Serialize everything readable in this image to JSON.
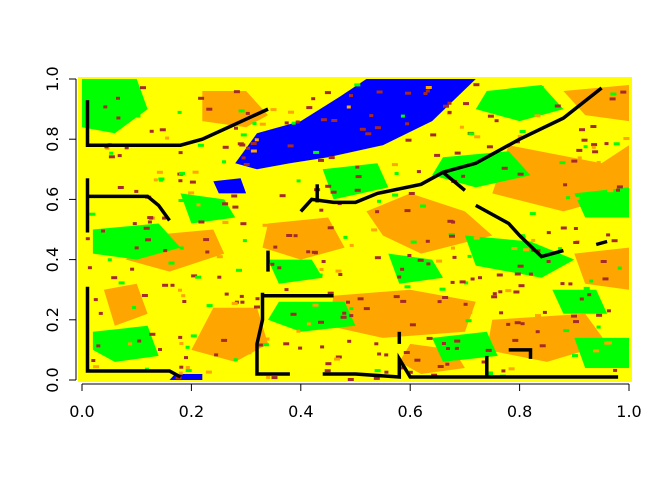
{
  "chart_data": {
    "type": "heatmap",
    "title": "",
    "xlabel": "",
    "ylabel": "",
    "xlim": [
      0,
      1
    ],
    "ylim": [
      0,
      1
    ],
    "grid": false,
    "x_ticks": [
      "0.0",
      "0.2",
      "0.4",
      "0.6",
      "0.8",
      "1.0"
    ],
    "y_ticks": [
      "0.0",
      "0.2",
      "0.4",
      "0.6",
      "0.8",
      "1.0"
    ],
    "categories": [
      "blue",
      "green",
      "yellow",
      "orange",
      "brown"
    ],
    "colors": {
      "water": "#0000ff",
      "green": "#00ff00",
      "yellow": "#ffff00",
      "orange": "#ffa500",
      "brown": "#a52a2a",
      "line": "#000000"
    },
    "regions": [
      {
        "class": "water",
        "points": [
          [
            0.52,
            1.0
          ],
          [
            0.72,
            1.0
          ],
          [
            0.64,
            0.86
          ],
          [
            0.55,
            0.78
          ],
          [
            0.45,
            0.74
          ],
          [
            0.38,
            0.72
          ],
          [
            0.32,
            0.7
          ],
          [
            0.28,
            0.72
          ],
          [
            0.32,
            0.82
          ],
          [
            0.4,
            0.86
          ],
          [
            0.47,
            0.94
          ]
        ]
      },
      {
        "class": "water",
        "points": [
          [
            0.24,
            0.66
          ],
          [
            0.29,
            0.67
          ],
          [
            0.3,
            0.62
          ],
          [
            0.25,
            0.62
          ]
        ]
      },
      {
        "class": "water",
        "points": [
          [
            0.16,
            0.0
          ],
          [
            0.22,
            0.0
          ],
          [
            0.22,
            0.02
          ],
          [
            0.17,
            0.02
          ]
        ]
      },
      {
        "class": "orange",
        "points": [
          [
            0.22,
            0.96
          ],
          [
            0.3,
            0.96
          ],
          [
            0.34,
            0.88
          ],
          [
            0.3,
            0.84
          ],
          [
            0.22,
            0.86
          ]
        ]
      },
      {
        "class": "orange",
        "points": [
          [
            0.52,
            0.93
          ],
          [
            0.6,
            0.94
          ],
          [
            0.62,
            0.88
          ],
          [
            0.55,
            0.86
          ]
        ]
      },
      {
        "class": "orange",
        "points": [
          [
            0.78,
            0.78
          ],
          [
            0.95,
            0.72
          ],
          [
            1.0,
            0.78
          ],
          [
            1.0,
            0.62
          ],
          [
            0.88,
            0.56
          ],
          [
            0.75,
            0.62
          ]
        ]
      },
      {
        "class": "orange",
        "points": [
          [
            0.88,
            0.96
          ],
          [
            1.0,
            0.98
          ],
          [
            1.0,
            0.86
          ],
          [
            0.92,
            0.88
          ]
        ]
      },
      {
        "class": "orange",
        "points": [
          [
            0.6,
            0.62
          ],
          [
            0.7,
            0.56
          ],
          [
            0.75,
            0.48
          ],
          [
            0.62,
            0.42
          ],
          [
            0.55,
            0.48
          ],
          [
            0.52,
            0.56
          ]
        ]
      },
      {
        "class": "orange",
        "points": [
          [
            0.34,
            0.52
          ],
          [
            0.45,
            0.54
          ],
          [
            0.48,
            0.44
          ],
          [
            0.4,
            0.4
          ],
          [
            0.33,
            0.44
          ]
        ]
      },
      {
        "class": "orange",
        "points": [
          [
            0.12,
            0.48
          ],
          [
            0.24,
            0.5
          ],
          [
            0.26,
            0.42
          ],
          [
            0.16,
            0.36
          ],
          [
            0.08,
            0.4
          ]
        ]
      },
      {
        "class": "orange",
        "points": [
          [
            0.46,
            0.28
          ],
          [
            0.6,
            0.3
          ],
          [
            0.72,
            0.26
          ],
          [
            0.7,
            0.16
          ],
          [
            0.55,
            0.14
          ],
          [
            0.45,
            0.18
          ]
        ]
      },
      {
        "class": "orange",
        "points": [
          [
            0.24,
            0.24
          ],
          [
            0.32,
            0.24
          ],
          [
            0.34,
            0.12
          ],
          [
            0.28,
            0.06
          ],
          [
            0.2,
            0.1
          ]
        ]
      },
      {
        "class": "orange",
        "points": [
          [
            0.75,
            0.2
          ],
          [
            0.92,
            0.22
          ],
          [
            0.96,
            0.12
          ],
          [
            0.85,
            0.06
          ],
          [
            0.74,
            0.1
          ]
        ]
      },
      {
        "class": "orange",
        "points": [
          [
            0.04,
            0.3
          ],
          [
            0.1,
            0.32
          ],
          [
            0.12,
            0.22
          ],
          [
            0.06,
            0.18
          ]
        ]
      },
      {
        "class": "orange",
        "points": [
          [
            0.9,
            0.42
          ],
          [
            1.0,
            0.44
          ],
          [
            1.0,
            0.3
          ],
          [
            0.92,
            0.32
          ]
        ]
      },
      {
        "class": "orange",
        "points": [
          [
            0.6,
            0.12
          ],
          [
            0.68,
            0.1
          ],
          [
            0.7,
            0.04
          ],
          [
            0.62,
            0.02
          ],
          [
            0.58,
            0.06
          ]
        ]
      },
      {
        "class": "green",
        "points": [
          [
            0.0,
            1.0
          ],
          [
            0.1,
            1.0
          ],
          [
            0.12,
            0.9
          ],
          [
            0.06,
            0.82
          ],
          [
            0.0,
            0.84
          ]
        ]
      },
      {
        "class": "green",
        "points": [
          [
            0.74,
            0.96
          ],
          [
            0.84,
            0.98
          ],
          [
            0.88,
            0.9
          ],
          [
            0.8,
            0.86
          ],
          [
            0.72,
            0.9
          ]
        ]
      },
      {
        "class": "green",
        "points": [
          [
            0.66,
            0.74
          ],
          [
            0.78,
            0.76
          ],
          [
            0.82,
            0.68
          ],
          [
            0.72,
            0.64
          ],
          [
            0.64,
            0.68
          ]
        ]
      },
      {
        "class": "green",
        "points": [
          [
            0.44,
            0.7
          ],
          [
            0.54,
            0.72
          ],
          [
            0.56,
            0.64
          ],
          [
            0.46,
            0.6
          ]
        ]
      },
      {
        "class": "green",
        "points": [
          [
            0.7,
            0.48
          ],
          [
            0.82,
            0.46
          ],
          [
            0.9,
            0.4
          ],
          [
            0.84,
            0.34
          ],
          [
            0.72,
            0.38
          ]
        ]
      },
      {
        "class": "green",
        "points": [
          [
            0.02,
            0.5
          ],
          [
            0.14,
            0.52
          ],
          [
            0.18,
            0.44
          ],
          [
            0.1,
            0.4
          ],
          [
            0.02,
            0.42
          ]
        ]
      },
      {
        "class": "green",
        "points": [
          [
            0.18,
            0.62
          ],
          [
            0.26,
            0.6
          ],
          [
            0.28,
            0.54
          ],
          [
            0.2,
            0.52
          ]
        ]
      },
      {
        "class": "green",
        "points": [
          [
            0.34,
            0.4
          ],
          [
            0.42,
            0.4
          ],
          [
            0.44,
            0.34
          ],
          [
            0.36,
            0.32
          ]
        ]
      },
      {
        "class": "green",
        "points": [
          [
            0.36,
            0.26
          ],
          [
            0.48,
            0.26
          ],
          [
            0.5,
            0.18
          ],
          [
            0.4,
            0.16
          ],
          [
            0.34,
            0.2
          ]
        ]
      },
      {
        "class": "green",
        "points": [
          [
            0.02,
            0.16
          ],
          [
            0.12,
            0.18
          ],
          [
            0.14,
            0.08
          ],
          [
            0.06,
            0.06
          ],
          [
            0.02,
            0.1
          ]
        ]
      },
      {
        "class": "green",
        "points": [
          [
            0.56,
            0.42
          ],
          [
            0.64,
            0.4
          ],
          [
            0.66,
            0.34
          ],
          [
            0.58,
            0.32
          ]
        ]
      },
      {
        "class": "green",
        "points": [
          [
            0.64,
            0.14
          ],
          [
            0.74,
            0.16
          ],
          [
            0.76,
            0.08
          ],
          [
            0.66,
            0.06
          ]
        ]
      },
      {
        "class": "green",
        "points": [
          [
            0.9,
            0.14
          ],
          [
            1.0,
            0.14
          ],
          [
            1.0,
            0.04
          ],
          [
            0.92,
            0.04
          ]
        ]
      },
      {
        "class": "green",
        "points": [
          [
            0.86,
            0.3
          ],
          [
            0.94,
            0.3
          ],
          [
            0.96,
            0.22
          ],
          [
            0.88,
            0.22
          ]
        ]
      },
      {
        "class": "green",
        "points": [
          [
            0.9,
            0.62
          ],
          [
            1.0,
            0.64
          ],
          [
            1.0,
            0.54
          ],
          [
            0.92,
            0.54
          ]
        ]
      }
    ],
    "lines": [
      {
        "points": [
          [
            0.01,
            0.93
          ],
          [
            0.01,
            0.78
          ],
          [
            0.18,
            0.78
          ],
          [
            0.22,
            0.8
          ],
          [
            0.28,
            0.85
          ],
          [
            0.34,
            0.9
          ]
        ]
      },
      {
        "points": [
          [
            0.01,
            0.67
          ],
          [
            0.01,
            0.49
          ]
        ]
      },
      {
        "points": [
          [
            0.01,
            0.61
          ],
          [
            0.12,
            0.61
          ],
          [
            0.14,
            0.58
          ],
          [
            0.16,
            0.53
          ]
        ]
      },
      {
        "points": [
          [
            0.01,
            0.31
          ],
          [
            0.01,
            0.03
          ],
          [
            0.16,
            0.03
          ],
          [
            0.18,
            0.01
          ]
        ]
      },
      {
        "points": [
          [
            0.34,
            0.43
          ],
          [
            0.34,
            0.36
          ]
        ]
      },
      {
        "points": [
          [
            0.33,
            0.29
          ],
          [
            0.33,
            0.2
          ],
          [
            0.32,
            0.12
          ],
          [
            0.32,
            0.02
          ],
          [
            0.38,
            0.02
          ]
        ]
      },
      {
        "points": [
          [
            0.33,
            0.28
          ],
          [
            0.46,
            0.28
          ]
        ]
      },
      {
        "points": [
          [
            0.4,
            0.56
          ],
          [
            0.42,
            0.6
          ],
          [
            0.46,
            0.59
          ],
          [
            0.5,
            0.59
          ],
          [
            0.54,
            0.62
          ],
          [
            0.62,
            0.65
          ],
          [
            0.66,
            0.69
          ],
          [
            0.72,
            0.72
          ],
          [
            0.8,
            0.8
          ],
          [
            0.88,
            0.87
          ],
          [
            0.95,
            0.97
          ]
        ]
      },
      {
        "points": [
          [
            0.43,
            0.65
          ],
          [
            0.43,
            0.59
          ]
        ]
      },
      {
        "points": [
          [
            0.66,
            0.69
          ],
          [
            0.7,
            0.63
          ]
        ]
      },
      {
        "points": [
          [
            0.72,
            0.58
          ],
          [
            0.78,
            0.52
          ],
          [
            0.8,
            0.48
          ],
          [
            0.84,
            0.41
          ],
          [
            0.88,
            0.43
          ]
        ]
      },
      {
        "points": [
          [
            0.94,
            0.45
          ],
          [
            0.96,
            0.46
          ]
        ]
      },
      {
        "points": [
          [
            0.44,
            0.02
          ],
          [
            0.5,
            0.02
          ],
          [
            0.58,
            0.01
          ],
          [
            0.58,
            0.07
          ],
          [
            0.6,
            0.01
          ],
          [
            0.98,
            0.01
          ]
        ]
      },
      {
        "points": [
          [
            0.58,
            0.16
          ],
          [
            0.58,
            0.12
          ]
        ]
      },
      {
        "points": [
          [
            0.74,
            0.08
          ],
          [
            0.74,
            0.01
          ]
        ]
      },
      {
        "points": [
          [
            0.78,
            0.1
          ],
          [
            0.82,
            0.1
          ],
          [
            0.82,
            0.07
          ]
        ]
      }
    ]
  }
}
